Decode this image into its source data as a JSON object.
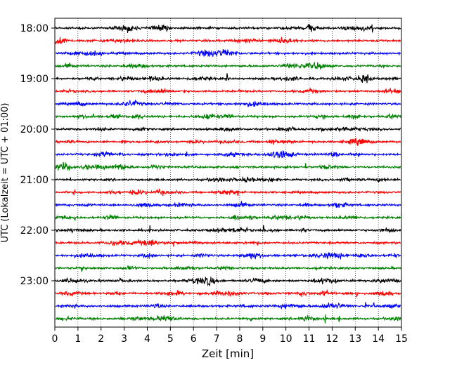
{
  "chart_data": {
    "type": "line",
    "title": "",
    "xlabel": "Zeit  [min]",
    "ylabel": "UTC (Lokalzeit = UTC + 01:00)",
    "xlim": [
      0,
      15
    ],
    "xticks": [
      0,
      1,
      2,
      3,
      4,
      5,
      6,
      7,
      8,
      9,
      10,
      11,
      12,
      13,
      14,
      15
    ],
    "ytick_labels": [
      "18:00",
      "19:00",
      "20:00",
      "21:00",
      "22:00",
      "23:00"
    ],
    "grid": "vertical dotted",
    "trace_colors": [
      "#000000",
      "#ff0000",
      "#0000ff",
      "#008000"
    ],
    "traces": [
      {
        "start": "18:00",
        "color": "#000000"
      },
      {
        "start": "18:15",
        "color": "#ff0000"
      },
      {
        "start": "18:30",
        "color": "#0000ff"
      },
      {
        "start": "18:45",
        "color": "#008000"
      },
      {
        "start": "19:00",
        "color": "#000000"
      },
      {
        "start": "19:15",
        "color": "#ff0000"
      },
      {
        "start": "19:30",
        "color": "#0000ff"
      },
      {
        "start": "19:45",
        "color": "#008000"
      },
      {
        "start": "20:00",
        "color": "#000000"
      },
      {
        "start": "20:15",
        "color": "#ff0000"
      },
      {
        "start": "20:30",
        "color": "#0000ff"
      },
      {
        "start": "20:45",
        "color": "#008000"
      },
      {
        "start": "21:00",
        "color": "#000000"
      },
      {
        "start": "21:15",
        "color": "#ff0000"
      },
      {
        "start": "21:30",
        "color": "#0000ff"
      },
      {
        "start": "21:45",
        "color": "#008000"
      },
      {
        "start": "22:00",
        "color": "#000000"
      },
      {
        "start": "22:15",
        "color": "#ff0000"
      },
      {
        "start": "22:30",
        "color": "#0000ff"
      },
      {
        "start": "22:45",
        "color": "#008000"
      },
      {
        "start": "23:00",
        "color": "#000000"
      },
      {
        "start": "23:15",
        "color": "#ff0000"
      },
      {
        "start": "23:30",
        "color": "#0000ff"
      },
      {
        "start": "23:45",
        "color": "#008000"
      }
    ]
  }
}
